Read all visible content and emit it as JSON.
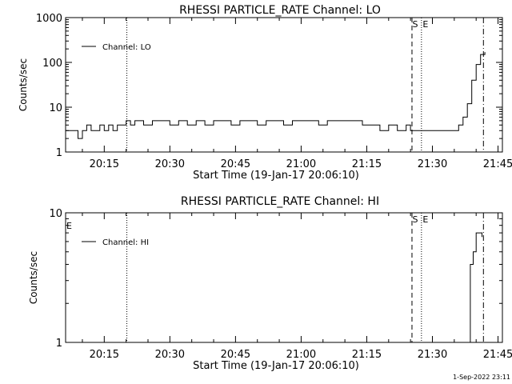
{
  "footer_timestamp": "1-Sep-2022 23:11",
  "chart_data": [
    {
      "type": "line",
      "title": "RHESSI PARTICLE_RATE Channel: LO",
      "xlabel": "Start Time (19-Jan-17 20:06:10)",
      "ylabel": "Counts/sec",
      "yscale": "log",
      "xlim": [
        "20:06:10",
        "21:46:00"
      ],
      "ylim": [
        1,
        1000
      ],
      "x_ticks": [
        "20:15",
        "20:30",
        "20:45",
        "21:00",
        "21:15",
        "21:30",
        "21:45"
      ],
      "y_ticks": [
        "1",
        "10",
        "100",
        "1000"
      ],
      "legend": "top-left",
      "series": [
        {
          "name": "Channel: LO",
          "x": [
            "20:06:10",
            "20:08",
            "20:09",
            "20:10",
            "20:11",
            "20:12",
            "20:13",
            "20:14",
            "20:15",
            "20:16",
            "20:17",
            "20:18",
            "20:19",
            "20:20",
            "20:21",
            "20:22",
            "20:24",
            "20:26",
            "20:28",
            "20:30",
            "20:32",
            "20:34",
            "20:36",
            "20:38",
            "20:40",
            "20:42",
            "20:44",
            "20:46",
            "20:48",
            "20:50",
            "20:52",
            "20:54",
            "20:56",
            "20:58",
            "21:00",
            "21:02",
            "21:04",
            "21:06",
            "21:08",
            "21:10",
            "21:12",
            "21:14",
            "21:16",
            "21:18",
            "21:20",
            "21:22",
            "21:24",
            "21:25",
            "21:26",
            "21:27",
            "21:28",
            "21:30",
            "21:32",
            "21:34",
            "21:35",
            "21:36",
            "21:37",
            "21:38",
            "21:39",
            "21:40",
            "21:41",
            "21:42"
          ],
          "y": [
            3,
            3,
            2,
            3,
            4,
            3,
            3,
            4,
            3,
            4,
            3,
            4,
            4,
            5,
            4,
            5,
            4,
            5,
            5,
            4,
            5,
            4,
            5,
            4,
            5,
            5,
            4,
            5,
            5,
            4,
            5,
            5,
            4,
            5,
            5,
            5,
            4,
            5,
            5,
            5,
            5,
            4,
            4,
            3,
            4,
            3,
            4,
            3,
            3,
            3,
            3,
            3,
            3,
            3,
            3,
            4,
            6,
            12,
            40,
            90,
            150,
            170
          ]
        }
      ],
      "annotations": {
        "vlines": [
          {
            "x": "20:20:10",
            "style": "dotted"
          },
          {
            "x": "21:25:20",
            "style": "dashed",
            "label": "S"
          },
          {
            "x": "21:27:30",
            "style": "dotted",
            "label": "E"
          },
          {
            "x": "21:41:40",
            "style": "dash-dot"
          }
        ]
      }
    },
    {
      "type": "line",
      "title": "RHESSI PARTICLE_RATE Channel: HI",
      "xlabel": "Start Time (19-Jan-17 20:06:10)",
      "ylabel": "Counts/sec",
      "yscale": "log",
      "xlim": [
        "20:06:10",
        "21:46:00"
      ],
      "ylim": [
        1,
        10
      ],
      "x_ticks": [
        "20:15",
        "20:30",
        "20:45",
        "21:00",
        "21:15",
        "21:30",
        "21:45"
      ],
      "y_ticks": [
        "1",
        "10"
      ],
      "legend": "top-left",
      "series": [
        {
          "name": "Channel: HI",
          "x": [
            "21:38:00",
            "21:38:20",
            "21:38:40",
            "21:39:00",
            "21:39:20",
            "21:39:40",
            "21:40:00",
            "21:40:20",
            "21:40:40",
            "21:41:00",
            "21:41:20"
          ],
          "y": [
            1,
            1,
            4,
            4,
            5,
            5,
            7,
            7,
            7,
            7,
            6.5
          ]
        }
      ],
      "annotations": {
        "left_label": "E",
        "vlines": [
          {
            "x": "20:20:10",
            "style": "dotted"
          },
          {
            "x": "21:25:20",
            "style": "dashed",
            "label": "S"
          },
          {
            "x": "21:27:30",
            "style": "dotted",
            "label": "E"
          },
          {
            "x": "21:41:40",
            "style": "dash-dot"
          }
        ]
      }
    }
  ]
}
